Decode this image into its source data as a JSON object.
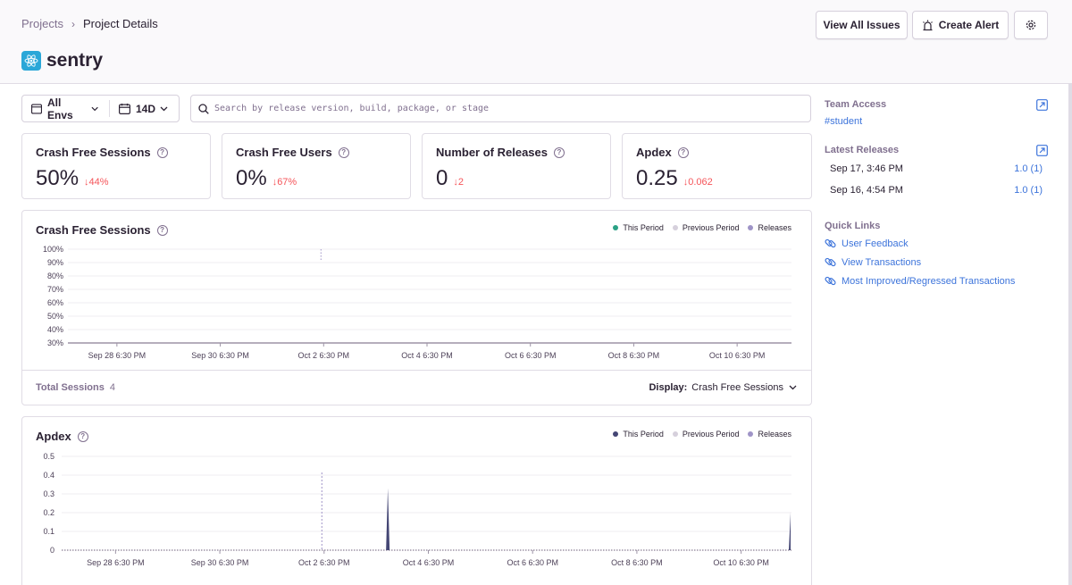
{
  "breadcrumb": {
    "projects": "Projects",
    "current": "Project Details"
  },
  "project": {
    "name": "sentry",
    "icon": "react-icon"
  },
  "header_buttons": {
    "view_all_issues": "View All Issues",
    "create_alert": "Create Alert"
  },
  "filters": {
    "environment": "All Envs",
    "period": "14D"
  },
  "search": {
    "placeholder": "Search by release version, build, package, or stage"
  },
  "score_cards": [
    {
      "title": "Crash Free Sessions",
      "value": "50%",
      "delta": "↓44%"
    },
    {
      "title": "Crash Free Users",
      "value": "0%",
      "delta": "↓67%"
    },
    {
      "title": "Number of Releases",
      "value": "0",
      "delta": "↓2"
    },
    {
      "title": "Apdex",
      "value": "0.25",
      "delta": "↓0.062"
    }
  ],
  "legend": {
    "this_period": "This Period",
    "previous_period": "Previous Period",
    "releases": "Releases"
  },
  "colors": {
    "accent": "#3d74db",
    "negative": "#f55459",
    "crash_free_series": "#2ba185",
    "apdex_series": "#444674",
    "previous_period": "#d6d0dc",
    "releases": "#9f94c7"
  },
  "crash_free_panel": {
    "title": "Crash Free Sessions",
    "total_label": "Total Sessions",
    "total_value": "4",
    "display_label": "Display:",
    "display_value": "Crash Free Sessions"
  },
  "apdex_panel": {
    "title": "Apdex"
  },
  "chart_data": [
    {
      "type": "line",
      "title": "Crash Free Sessions",
      "y_ticks": [
        "100%",
        "90%",
        "80%",
        "70%",
        "60%",
        "50%",
        "40%",
        "30%"
      ],
      "ylim": [
        30,
        100
      ],
      "x_ticks": [
        "Sep 28 6:30 PM",
        "Sep 30 6:30 PM",
        "Oct 2 6:30 PM",
        "Oct 4 6:30 PM",
        "Oct 6 6:30 PM",
        "Oct 8 6:30 PM",
        "Oct 10 6:30 PM"
      ],
      "series": [
        {
          "name": "This Period",
          "points": []
        }
      ],
      "releases": [
        "Oct 2 6:30 PM"
      ],
      "grid": true,
      "legend": "top-right"
    },
    {
      "type": "area",
      "title": "Apdex",
      "y_ticks": [
        "0.5",
        "0.4",
        "0.3",
        "0.2",
        "0.1",
        "0"
      ],
      "ylim": [
        0,
        0.5
      ],
      "x_ticks": [
        "Sep 28 6:30 PM",
        "Sep 30 6:30 PM",
        "Oct 2 6:30 PM",
        "Oct 4 6:30 PM",
        "Oct 6 6:30 PM",
        "Oct 8 6:30 PM",
        "Oct 10 6:30 PM"
      ],
      "series": [
        {
          "name": "This Period",
          "spikes": [
            {
              "near": "Oct 3",
              "value": 0.33
            },
            {
              "near": "end",
              "value": 0.2
            }
          ]
        }
      ],
      "releases": [
        "Oct 2 6:30 PM"
      ],
      "grid": true,
      "legend": "top-right"
    }
  ],
  "sidebar": {
    "team_access": {
      "title": "Team Access",
      "team": "#student"
    },
    "latest_releases": {
      "title": "Latest Releases",
      "items": [
        {
          "date": "Sep 17, 3:46 PM",
          "version": "1.0 (1)"
        },
        {
          "date": "Sep 16, 4:54 PM",
          "version": "1.0 (1)"
        }
      ]
    },
    "quick_links": {
      "title": "Quick Links",
      "items": [
        "User Feedback",
        "View Transactions",
        "Most Improved/Regressed Transactions"
      ]
    }
  }
}
